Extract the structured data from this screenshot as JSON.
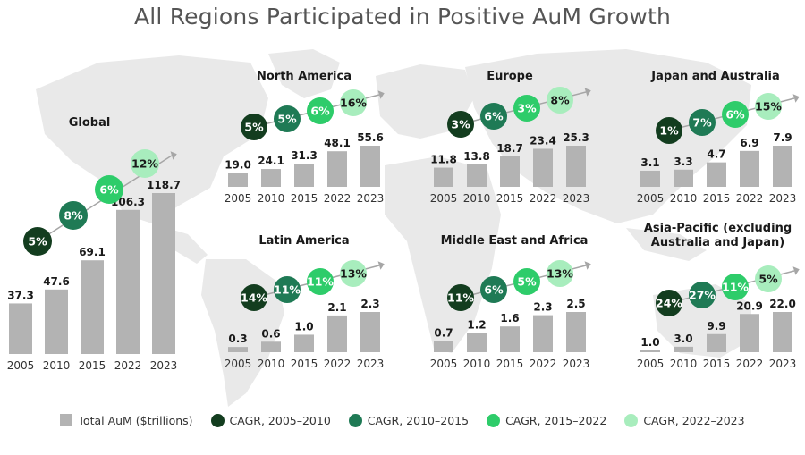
{
  "title": "All Regions Participated in Positive AuM Growth",
  "colors": {
    "bar": "#b3b3b3",
    "cagr": [
      "#133d1f",
      "#1f7a55",
      "#2ecc6a",
      "#a8edbd"
    ],
    "cagr_text": [
      "#ffffff",
      "#ffffff",
      "#ffffff",
      "#1a1a1a"
    ],
    "arrow": "#a6a6a6",
    "map": "#e9e9e9"
  },
  "legend": {
    "total": "Total AuM ($trillions)",
    "cagr": [
      "CAGR, 2005–2010",
      "CAGR, 2010–2015",
      "CAGR, 2015–2022",
      "CAGR, 2022–2023"
    ]
  },
  "chart_data": [
    {
      "type": "bar",
      "title": "Global",
      "categories": [
        "2005",
        "2010",
        "2015",
        "2022",
        "2023"
      ],
      "values": [
        37.3,
        47.6,
        69.1,
        106.3,
        118.7
      ],
      "value_labels": [
        "37.3",
        "47.6",
        "69.1",
        "106.3",
        "118.7"
      ],
      "cagr": [
        "5%",
        "8%",
        "6%",
        "12%"
      ]
    },
    {
      "type": "bar",
      "title": "North America",
      "categories": [
        "2005",
        "2010",
        "2015",
        "2022",
        "2023"
      ],
      "values": [
        19.0,
        24.1,
        31.3,
        48.1,
        55.6
      ],
      "value_labels": [
        "19.0",
        "24.1",
        "31.3",
        "48.1",
        "55.6"
      ],
      "cagr": [
        "5%",
        "5%",
        "6%",
        "16%"
      ]
    },
    {
      "type": "bar",
      "title": "Europe",
      "categories": [
        "2005",
        "2010",
        "2015",
        "2022",
        "2023"
      ],
      "values": [
        11.8,
        13.8,
        18.7,
        23.4,
        25.3
      ],
      "value_labels": [
        "11.8",
        "13.8",
        "18.7",
        "23.4",
        "25.3"
      ],
      "cagr": [
        "3%",
        "6%",
        "3%",
        "8%"
      ]
    },
    {
      "type": "bar",
      "title": "Japan and Australia",
      "categories": [
        "2005",
        "2010",
        "2015",
        "2022",
        "2023"
      ],
      "values": [
        3.1,
        3.3,
        4.7,
        6.9,
        7.9
      ],
      "value_labels": [
        "3.1",
        "3.3",
        "4.7",
        "6.9",
        "7.9"
      ],
      "cagr": [
        "1%",
        "7%",
        "6%",
        "15%"
      ]
    },
    {
      "type": "bar",
      "title": "Latin America",
      "categories": [
        "2005",
        "2010",
        "2015",
        "2022",
        "2023"
      ],
      "values": [
        0.3,
        0.6,
        1.0,
        2.1,
        2.3
      ],
      "value_labels": [
        "0.3",
        "0.6",
        "1.0",
        "2.1",
        "2.3"
      ],
      "cagr": [
        "14%",
        "11%",
        "11%",
        "13%"
      ]
    },
    {
      "type": "bar",
      "title": "Middle East and Africa",
      "categories": [
        "2005",
        "2010",
        "2015",
        "2022",
        "2023"
      ],
      "values": [
        0.7,
        1.2,
        1.6,
        2.3,
        2.5
      ],
      "value_labels": [
        "0.7",
        "1.2",
        "1.6",
        "2.3",
        "2.5"
      ],
      "cagr": [
        "11%",
        "6%",
        "5%",
        "13%"
      ]
    },
    {
      "type": "bar",
      "title": "Asia-Pacific (excluding Australia and Japan)",
      "categories": [
        "2005",
        "2010",
        "2015",
        "2022",
        "2023"
      ],
      "values": [
        1.0,
        3.0,
        9.9,
        20.9,
        22.0
      ],
      "value_labels": [
        "1.0",
        "3.0",
        "9.9",
        "20.9",
        "22.0"
      ],
      "cagr": [
        "24%",
        "27%",
        "11%",
        "5%"
      ]
    }
  ]
}
